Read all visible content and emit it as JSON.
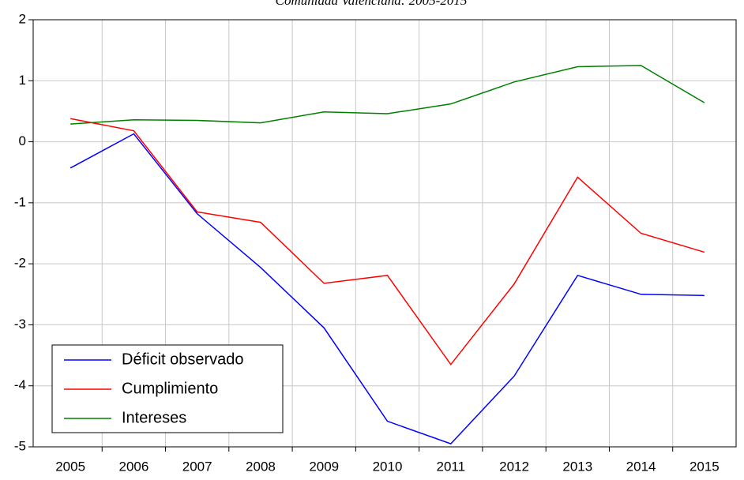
{
  "chart_data": {
    "type": "line",
    "title": "Comunidad Valenciana: 2005-2015",
    "categories": [
      "2005",
      "2006",
      "2007",
      "2008",
      "2009",
      "2010",
      "2011",
      "2012",
      "2013",
      "2014",
      "2015"
    ],
    "series": [
      {
        "name": "Déficit observado",
        "color": "#0000ff",
        "values": [
          -0.43,
          0.13,
          -1.18,
          -2.06,
          -3.05,
          -4.58,
          -4.95,
          -3.84,
          -2.19,
          -2.5,
          -2.52
        ]
      },
      {
        "name": "Cumplimiento",
        "color": "#ff0000",
        "values": [
          0.38,
          0.18,
          -1.15,
          -1.32,
          -2.32,
          -2.19,
          -3.65,
          -2.33,
          -0.58,
          -1.5,
          -1.81
        ]
      },
      {
        "name": "Intereses",
        "color": "#008000",
        "values": [
          0.29,
          0.36,
          0.35,
          0.31,
          0.49,
          0.46,
          0.62,
          0.98,
          1.23,
          1.25,
          0.64
        ]
      }
    ],
    "ylim": [
      -5,
      2
    ],
    "yticks": [
      -5,
      -4,
      -3,
      -2,
      -1,
      0,
      1,
      2
    ],
    "grid": true,
    "legend": "lower left"
  }
}
